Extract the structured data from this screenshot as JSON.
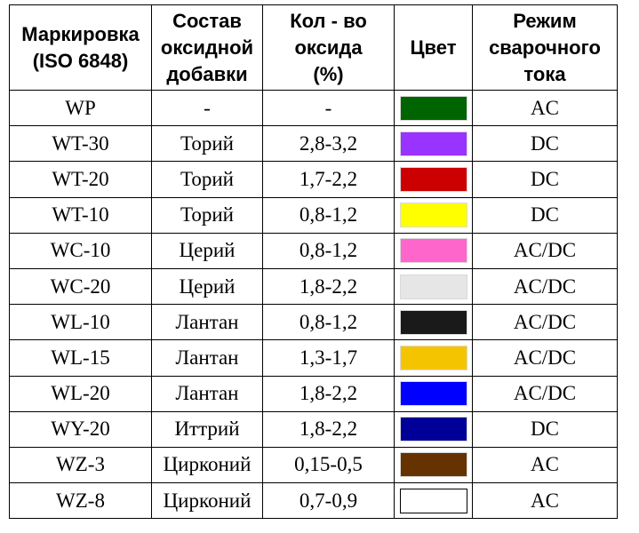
{
  "headers": {
    "marking": "Маркировка\n(ISO 6848)",
    "composition": "Состав\nоксидной\nдобавки",
    "amount": "Кол - во\nоксида\n(%)",
    "color": "Цвет",
    "current": "Режим\nсварочного\nтока"
  },
  "rows": [
    {
      "marking": "WP",
      "composition": "-",
      "amount": "-",
      "color": "#006400",
      "current": "AC"
    },
    {
      "marking": "WT-30",
      "composition": "Торий",
      "amount": "2,8-3,2",
      "color": "#9933ff",
      "current": "DC"
    },
    {
      "marking": "WT-20",
      "composition": "Торий",
      "amount": "1,7-2,2",
      "color": "#cc0000",
      "current": "DC"
    },
    {
      "marking": "WT-10",
      "composition": "Торий",
      "amount": "0,8-1,2",
      "color": "#ffff00",
      "current": "DC"
    },
    {
      "marking": "WC-10",
      "composition": "Церий",
      "amount": "0,8-1,2",
      "color": "#ff66cc",
      "current": "AC/DC"
    },
    {
      "marking": "WC-20",
      "composition": "Церий",
      "amount": "1,8-2,2",
      "color": "#e6e6e6",
      "current": "AC/DC"
    },
    {
      "marking": "WL-10",
      "composition": "Лантан",
      "amount": "0,8-1,2",
      "color": "#1a1a1a",
      "current": "AC/DC"
    },
    {
      "marking": "WL-15",
      "composition": "Лантан",
      "amount": "1,3-1,7",
      "color": "#f5c400",
      "current": "AC/DC"
    },
    {
      "marking": "WL-20",
      "composition": "Лантан",
      "amount": "1,8-2,2",
      "color": "#0000ff",
      "current": "AC/DC"
    },
    {
      "marking": "WY-20",
      "composition": "Иттрий",
      "amount": "1,8-2,2",
      "color": "#000099",
      "current": "DC"
    },
    {
      "marking": "WZ-3",
      "composition": "Цирконий",
      "amount": "0,15-0,5",
      "color": "#663300",
      "current": "AC"
    },
    {
      "marking": "WZ-8",
      "composition": "Цирконий",
      "amount": "0,7-0,9",
      "color": "#ffffff",
      "current": "AC"
    }
  ]
}
